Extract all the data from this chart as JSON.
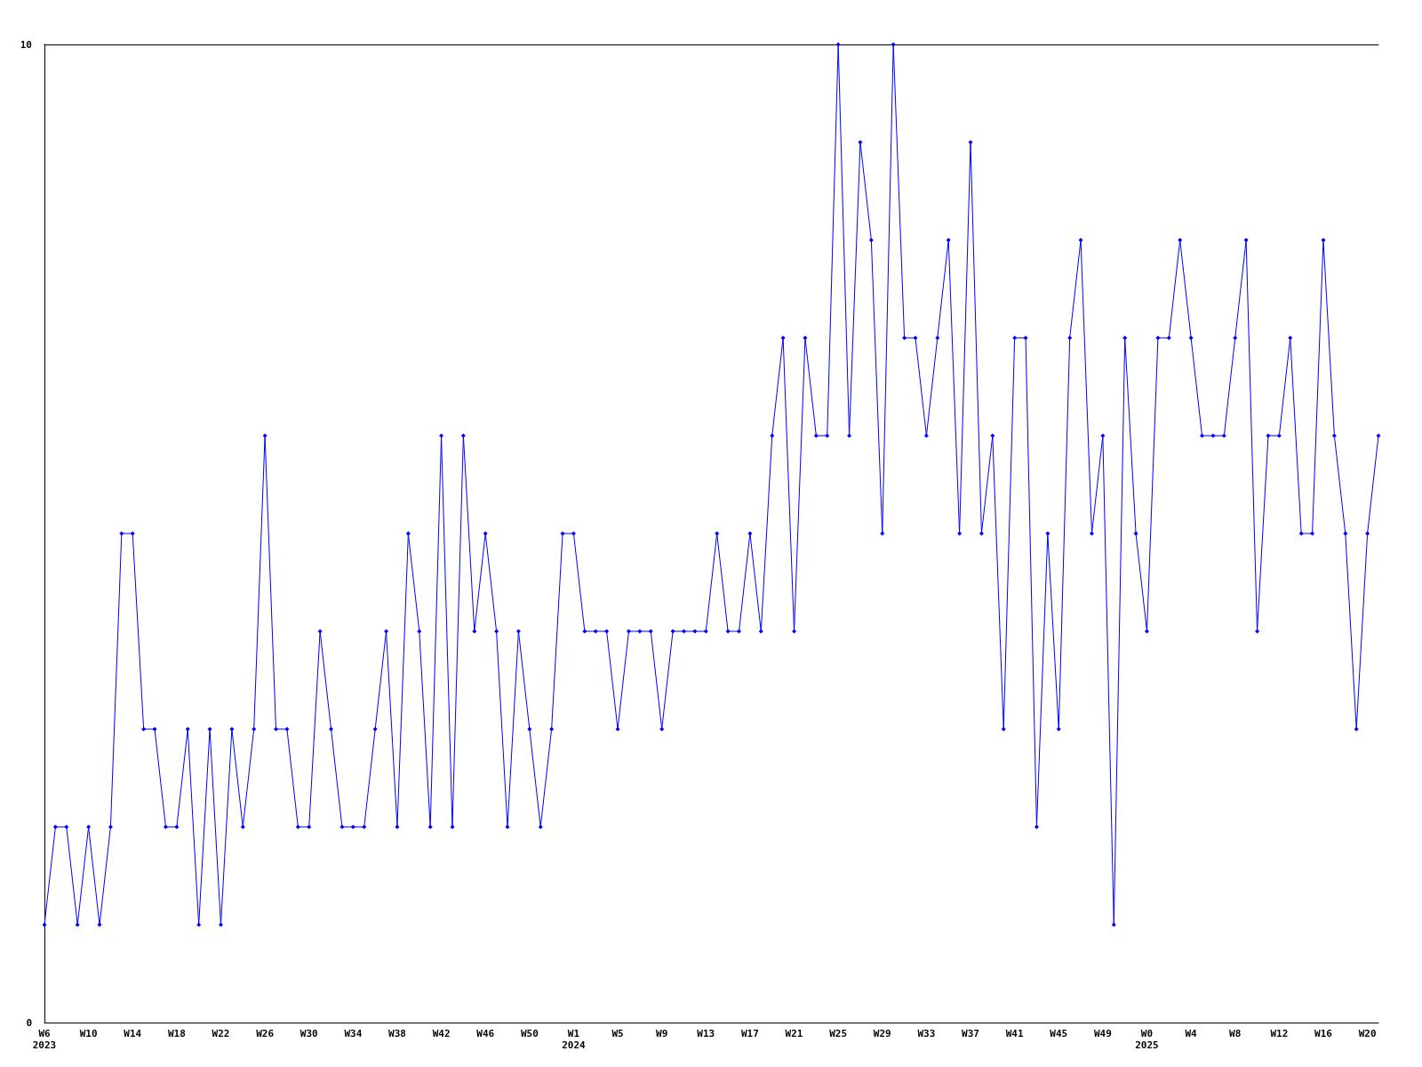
{
  "chart_data": {
    "type": "line",
    "categories": [
      "W6\n2023",
      null,
      null,
      null,
      "W10",
      null,
      null,
      null,
      "W14",
      null,
      null,
      null,
      "W18",
      null,
      null,
      null,
      "W22",
      null,
      null,
      null,
      "W26",
      null,
      null,
      null,
      "W30",
      null,
      null,
      null,
      "W34",
      null,
      null,
      null,
      "W38",
      null,
      null,
      null,
      "W42",
      null,
      null,
      null,
      "W46",
      null,
      null,
      null,
      "W50",
      null,
      null,
      null,
      "W1\n2024",
      null,
      null,
      null,
      "W5",
      null,
      null,
      null,
      "W9",
      null,
      null,
      null,
      "W13",
      null,
      null,
      null,
      "W17",
      null,
      null,
      null,
      "W21",
      null,
      null,
      null,
      "W25",
      null,
      null,
      null,
      "W29",
      null,
      null,
      null,
      "W33",
      null,
      null,
      null,
      "W37",
      null,
      null,
      null,
      "W41",
      null,
      null,
      null,
      "W45",
      null,
      null,
      null,
      "W49",
      null,
      null,
      null,
      "W0\n2025",
      null,
      null,
      null,
      "W4",
      null,
      null,
      null,
      "W8",
      null,
      null,
      null,
      "W12",
      null,
      null,
      null,
      "W16",
      null,
      null,
      null,
      "W20",
      null
    ],
    "series": [
      {
        "color": "#0000ff",
        "values": [
          1,
          2,
          2,
          1,
          2,
          1,
          2,
          5,
          5,
          3,
          3,
          2,
          2,
          3,
          1,
          3,
          1,
          3,
          2,
          3,
          6,
          3,
          3,
          2,
          2,
          4,
          3,
          2,
          2,
          2,
          3,
          4,
          2,
          5,
          4,
          2,
          6,
          2,
          6,
          4,
          5,
          4,
          2,
          4,
          3,
          2,
          3,
          5,
          5,
          4,
          4,
          4,
          3,
          4,
          4,
          4,
          3,
          4,
          4,
          4,
          4,
          5,
          4,
          4,
          5,
          4,
          6,
          7,
          4,
          7,
          6,
          6,
          10,
          6,
          9,
          8,
          5,
          10,
          7,
          7,
          6,
          7,
          8,
          5,
          9,
          5,
          6,
          3,
          7,
          7,
          2,
          5,
          3,
          7,
          8,
          5,
          6,
          1,
          7,
          5,
          4,
          7,
          7,
          8,
          7,
          6,
          6,
          6,
          7,
          8,
          4,
          6,
          6,
          7,
          5,
          5,
          8,
          6,
          5,
          3,
          5,
          6
        ]
      }
    ],
    "ylim": [
      0,
      10
    ],
    "yticks": [
      0,
      10
    ],
    "grid": false,
    "marker": "diamond",
    "line_style": "solid"
  }
}
